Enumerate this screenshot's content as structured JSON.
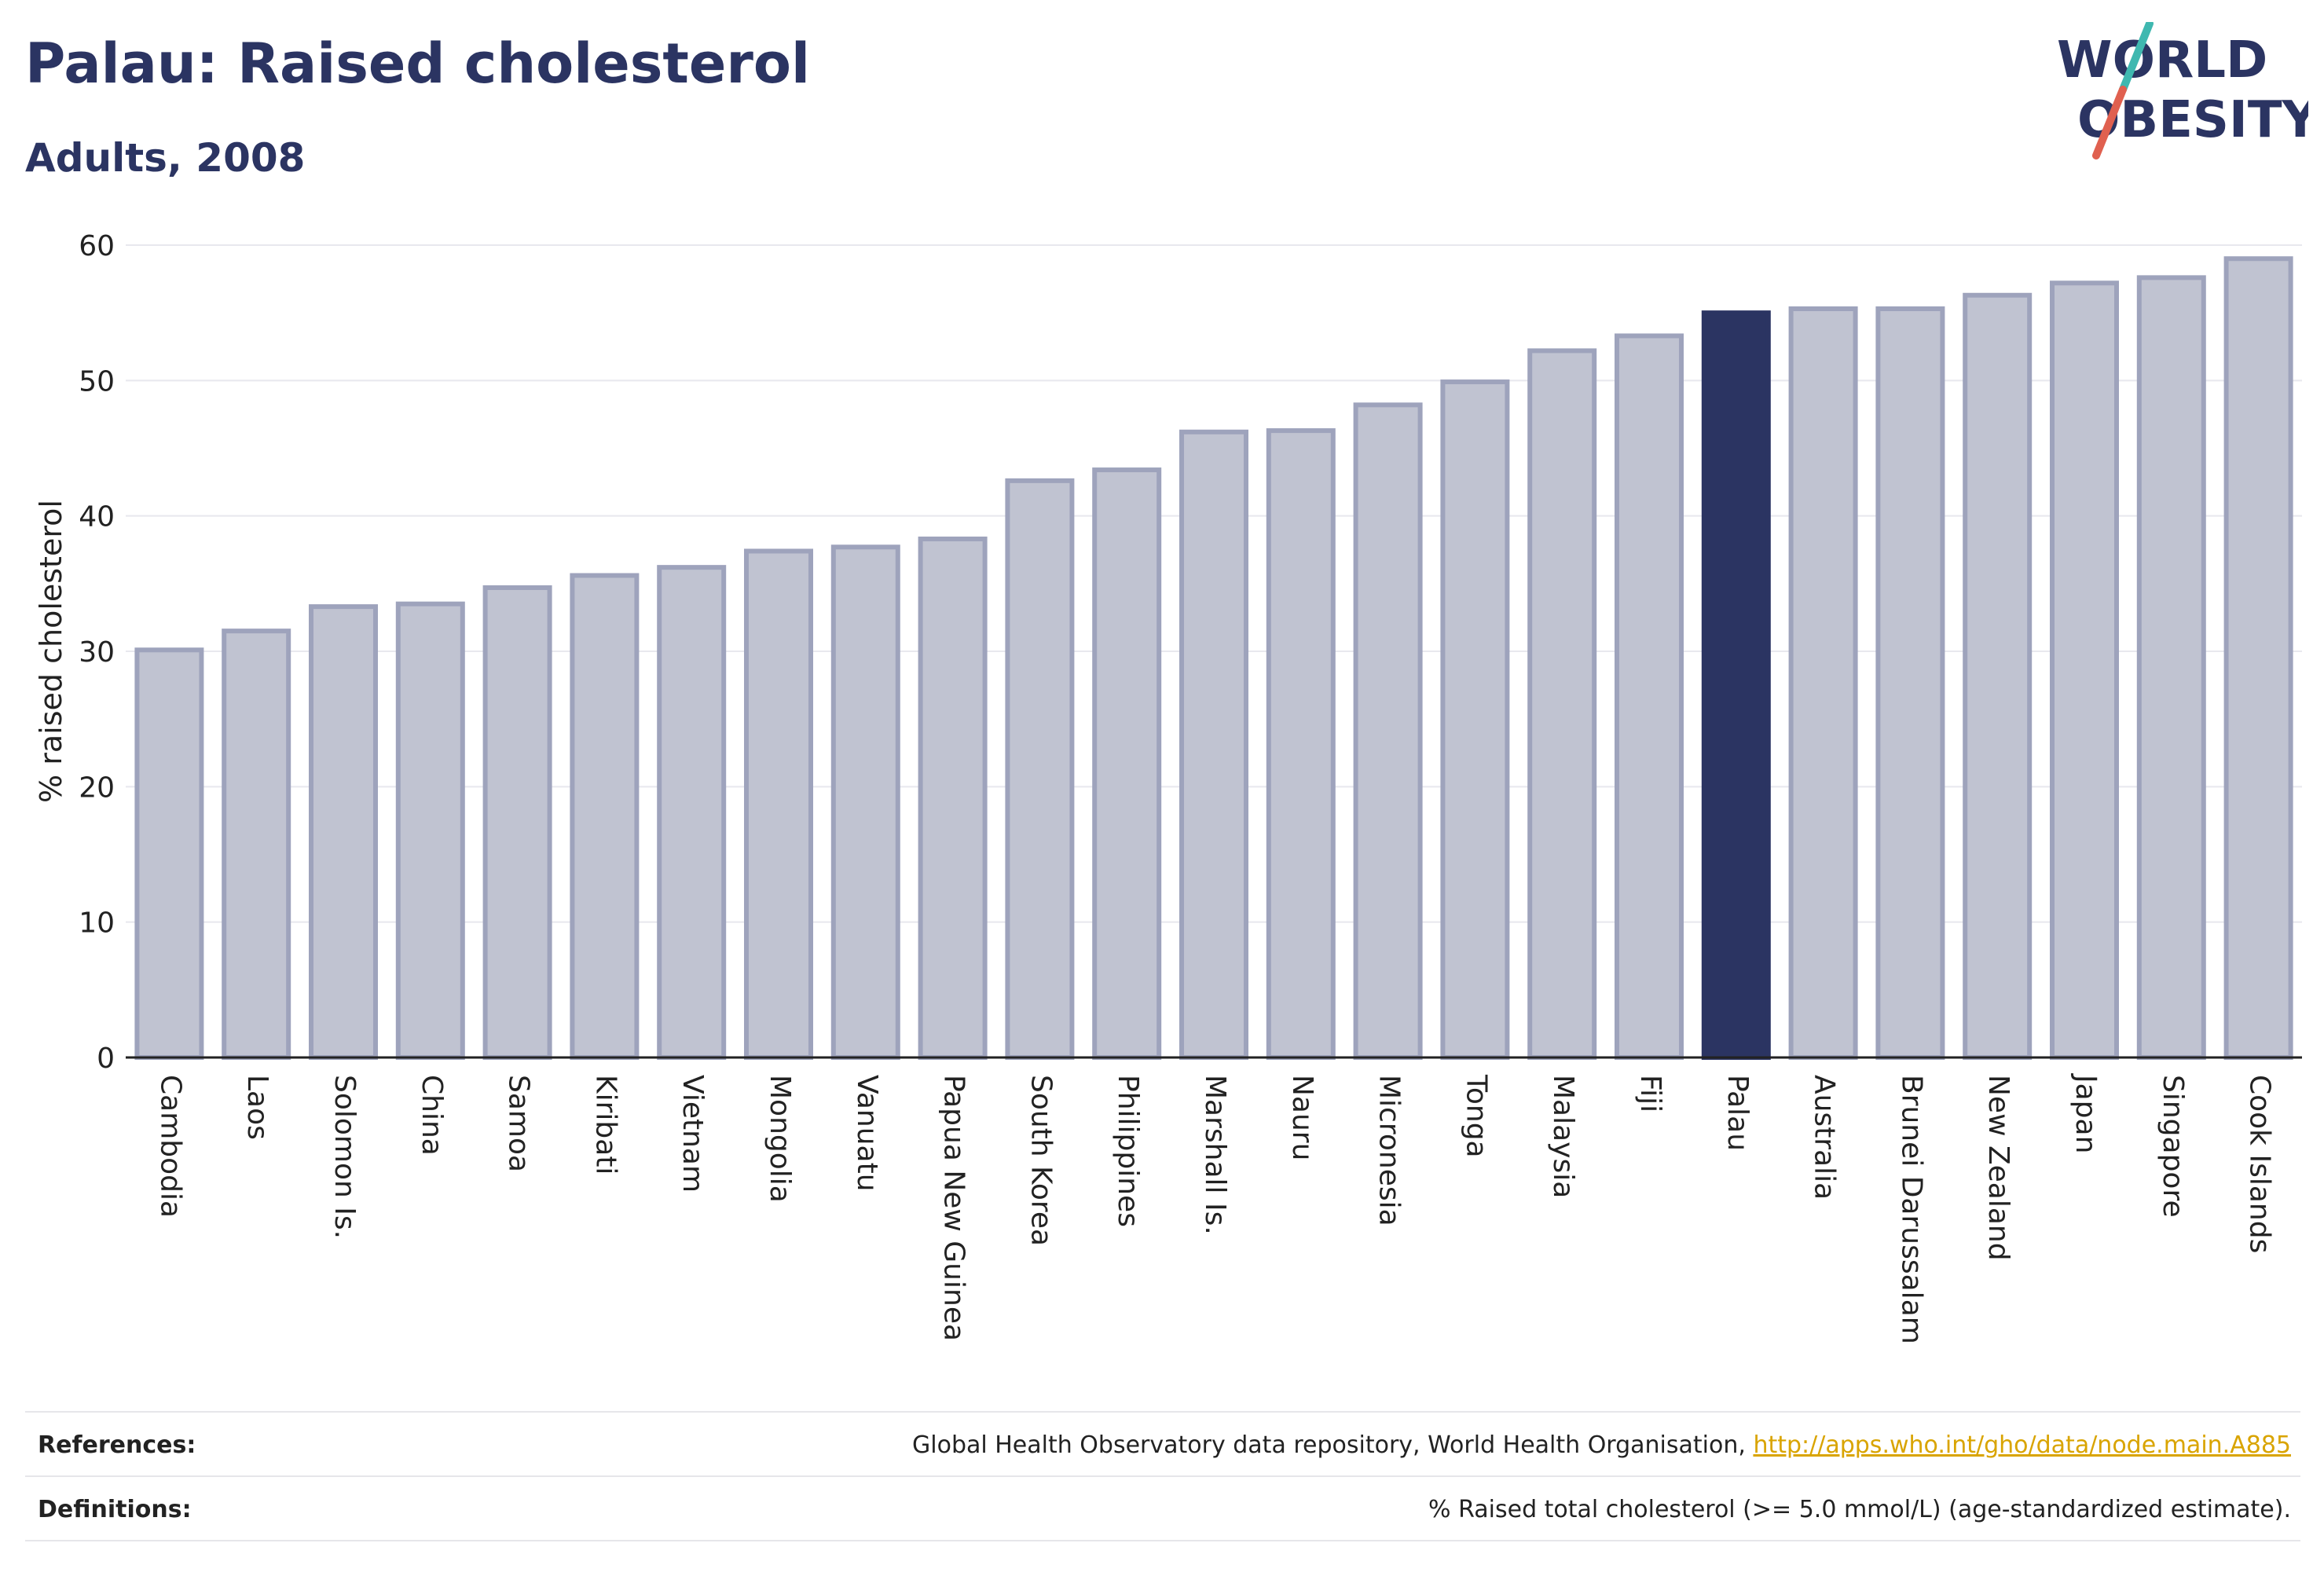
{
  "header": {
    "title": "Palau: Raised cholesterol",
    "subtitle": "Adults, 2008"
  },
  "logo": {
    "line1": "WORLD",
    "line2": "OBESITY",
    "colors": {
      "text": "#2b3462",
      "slash_teal": "#3fb8b0",
      "slash_red": "#e0604f"
    }
  },
  "chart_data": {
    "type": "bar",
    "ylabel": "% raised cholesterol",
    "xlabel": "",
    "ylim": [
      0,
      60
    ],
    "yticks": [
      0,
      10,
      20,
      30,
      40,
      50,
      60
    ],
    "grid": true,
    "highlight": "Palau",
    "colors": {
      "bar": "#c0c3d1",
      "bar_edge": "#9ea3bc",
      "highlight": "#2b3462",
      "grid": "#e8e8ee"
    },
    "categories": [
      "Cambodia",
      "Laos",
      "Solomon Is.",
      "China",
      "Samoa",
      "Kiribati",
      "Vietnam",
      "Mongolia",
      "Vanuatu",
      "Papua New Guinea",
      "South Korea",
      "Philippines",
      "Marshall Is.",
      "Nauru",
      "Micronesia",
      "Tonga",
      "Malaysia",
      "Fiji",
      "Palau",
      "Australia",
      "Brunei Darussalam",
      "New Zealand",
      "Japan",
      "Singapore",
      "Cook Islands"
    ],
    "values": [
      30.1,
      31.5,
      33.3,
      33.5,
      34.7,
      35.6,
      36.2,
      37.4,
      37.7,
      38.3,
      42.6,
      43.4,
      46.2,
      46.3,
      48.2,
      49.9,
      52.2,
      53.3,
      55.0,
      55.3,
      55.3,
      56.3,
      57.2,
      57.6,
      59.0
    ]
  },
  "footer": {
    "references_label": "References:",
    "references_text": "Global Health Observatory data repository, World Health Organisation, ",
    "references_link": "http://apps.who.int/gho/data/node.main.A885",
    "definitions_label": "Definitions:",
    "definitions_text": "% Raised total cholesterol (>= 5.0 mmol/L) (age-standardized estimate)."
  }
}
